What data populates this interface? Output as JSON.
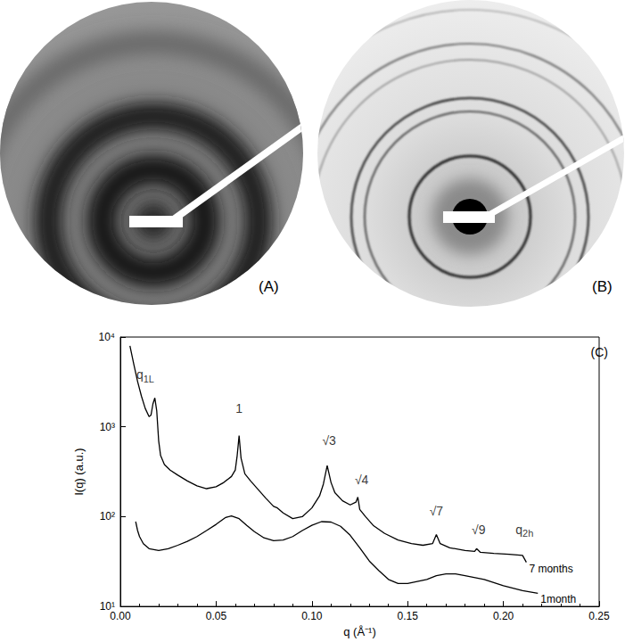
{
  "images": [
    {
      "label": "(A)"
    },
    {
      "label": "(B)"
    }
  ],
  "chart_data": {
    "type": "line",
    "title": "(C)",
    "x_label": "q (Å⁻¹)",
    "y_label": "I(q) (a.u.)",
    "log": "y",
    "grid": false,
    "xlim": [
      0,
      0.25
    ],
    "ylim": [
      10,
      10000
    ],
    "xticks": [
      {
        "value": 0,
        "label": "0.00"
      },
      {
        "value": 0.05,
        "label": "0.05"
      },
      {
        "value": 0.1,
        "label": "0.10"
      },
      {
        "value": 0.15,
        "label": "0.15"
      },
      {
        "value": 0.2,
        "label": "0.20"
      },
      {
        "value": 0.25,
        "label": "0.25"
      }
    ],
    "yticks": [
      {
        "value": 10,
        "label": "10¹"
      },
      {
        "value": 100,
        "label": "10²"
      },
      {
        "value": 1000,
        "label": "10³"
      },
      {
        "value": 10000,
        "label": "10⁴"
      }
    ],
    "series": [
      {
        "name": "7 months",
        "color": "#000000",
        "x": [
          0.005,
          0.007,
          0.009,
          0.011,
          0.013,
          0.015,
          0.016,
          0.017,
          0.018,
          0.019,
          0.02,
          0.021,
          0.023,
          0.026,
          0.03,
          0.035,
          0.04,
          0.045,
          0.05,
          0.054,
          0.058,
          0.06,
          0.061,
          0.062,
          0.063,
          0.065,
          0.068,
          0.072,
          0.076,
          0.08,
          0.082,
          0.085,
          0.09,
          0.095,
          0.1,
          0.104,
          0.106,
          0.108,
          0.11,
          0.112,
          0.116,
          0.12,
          0.123,
          0.124,
          0.125,
          0.128,
          0.132,
          0.138,
          0.145,
          0.152,
          0.158,
          0.163,
          0.165,
          0.167,
          0.172,
          0.18,
          0.185,
          0.186,
          0.188,
          0.195,
          0.203,
          0.21,
          0.212
        ],
        "values": [
          8000,
          5000,
          3200,
          2200,
          1600,
          1300,
          1350,
          1800,
          2100,
          1500,
          700,
          480,
          380,
          330,
          290,
          250,
          220,
          205,
          215,
          240,
          280,
          330,
          480,
          800,
          450,
          300,
          250,
          200,
          160,
          130,
          125,
          110,
          95,
          100,
          125,
          170,
          230,
          370,
          240,
          185,
          150,
          135,
          145,
          165,
          120,
          100,
          80,
          65,
          55,
          50,
          48,
          50,
          63,
          50,
          45,
          42,
          41,
          44,
          40,
          39,
          38,
          37,
          31
        ]
      },
      {
        "name": "1month",
        "color": "#000000",
        "x": [
          0.008,
          0.009,
          0.01,
          0.012,
          0.015,
          0.02,
          0.025,
          0.03,
          0.035,
          0.04,
          0.045,
          0.05,
          0.055,
          0.058,
          0.062,
          0.066,
          0.07,
          0.075,
          0.08,
          0.085,
          0.09,
          0.095,
          0.1,
          0.105,
          0.11,
          0.115,
          0.12,
          0.125,
          0.13,
          0.135,
          0.14,
          0.145,
          0.15,
          0.155,
          0.16,
          0.165,
          0.17,
          0.175,
          0.18,
          0.19,
          0.2,
          0.21,
          0.218
        ],
        "values": [
          88,
          70,
          60,
          50,
          44,
          42,
          44,
          48,
          53,
          60,
          70,
          82,
          98,
          102,
          95,
          80,
          68,
          58,
          54,
          55,
          60,
          70,
          80,
          88,
          87,
          78,
          62,
          45,
          32,
          25,
          20,
          18,
          18,
          19,
          20,
          22,
          23,
          23,
          22,
          20,
          17,
          15,
          14
        ]
      }
    ],
    "annotations": [
      {
        "text": "q",
        "sub": "1L",
        "x": 0.013,
        "y": 3800
      },
      {
        "text": "1",
        "x": 0.062,
        "y": 1600
      },
      {
        "text": "√3",
        "x": 0.109,
        "y": 700
      },
      {
        "text": "√4",
        "x": 0.126,
        "y": 260
      },
      {
        "text": "√7",
        "x": 0.165,
        "y": 115
      },
      {
        "text": "√9",
        "x": 0.187,
        "y": 72
      },
      {
        "text": "q",
        "sub": "2h",
        "x": 0.211,
        "y": 72
      }
    ]
  }
}
